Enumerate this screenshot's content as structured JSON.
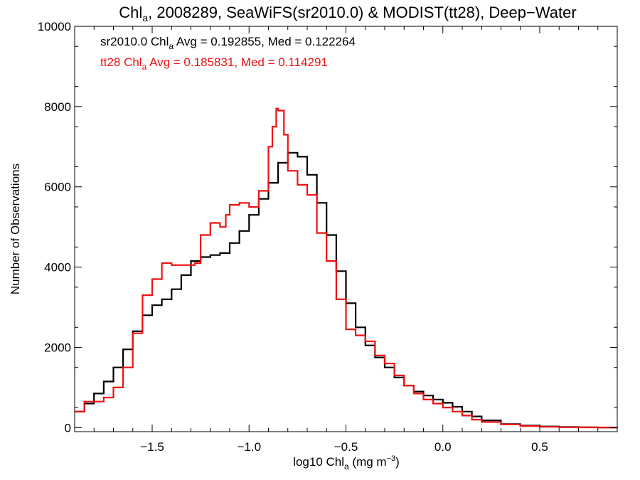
{
  "chart_data": {
    "type": "line",
    "title": {
      "pre": "Chl",
      "sub": "a",
      "post": ", 2008289, SeaWiFS(sr2010.0) & MODIST(tt28), Deep−Water"
    },
    "xlabel": {
      "pre": "log10 Chl",
      "sub": "a",
      "post": " (mg m",
      "sup": "−3",
      "end": ")"
    },
    "ylabel": "Number of Observations",
    "xlim": [
      -1.9,
      0.9
    ],
    "ylim": [
      -100,
      10000
    ],
    "xticks": [
      -1.5,
      -1.0,
      -0.5,
      0.0,
      0.5
    ],
    "xtick_labels": [
      "−1.5",
      "−1.0",
      "−0.5",
      "0.0",
      "0.5"
    ],
    "yticks": [
      0,
      2000,
      4000,
      6000,
      8000,
      10000
    ],
    "ytick_labels": [
      "0",
      "2000",
      "4000",
      "6000",
      "8000",
      "10000"
    ],
    "grid": false,
    "annotations": [
      {
        "pre": "sr2010.0 Chl",
        "sub": "a",
        "post": " Avg = 0.192855, Med = 0.122264",
        "color": "#000000"
      },
      {
        "pre": "tt28 Chl",
        "sub": "a",
        "post": " Avg = 0.185831, Med = 0.114291",
        "color": "#ee1111"
      }
    ],
    "series": [
      {
        "name": "sr2010.0",
        "color": "#000000",
        "x": [
          -1.9,
          -1.85,
          -1.8,
          -1.75,
          -1.7,
          -1.65,
          -1.6,
          -1.55,
          -1.5,
          -1.45,
          -1.4,
          -1.35,
          -1.3,
          -1.25,
          -1.2,
          -1.15,
          -1.1,
          -1.05,
          -1.0,
          -0.95,
          -0.9,
          -0.85,
          -0.8,
          -0.78,
          -0.75,
          -0.7,
          -0.65,
          -0.6,
          -0.55,
          -0.5,
          -0.45,
          -0.4,
          -0.35,
          -0.3,
          -0.25,
          -0.2,
          -0.15,
          -0.1,
          -0.05,
          0.0,
          0.05,
          0.1,
          0.15,
          0.2,
          0.3,
          0.4,
          0.5,
          0.6,
          0.7,
          0.8,
          0.9
        ],
        "y": [
          400,
          600,
          850,
          1150,
          1500,
          1950,
          2400,
          2800,
          3050,
          3200,
          3450,
          3800,
          4150,
          4250,
          4300,
          4350,
          4600,
          4900,
          5300,
          5700,
          6100,
          6600,
          6850,
          6850,
          6750,
          6300,
          5600,
          4800,
          3900,
          3100,
          2500,
          2050,
          1750,
          1500,
          1250,
          1050,
          900,
          800,
          700,
          620,
          520,
          400,
          280,
          180,
          90,
          50,
          30,
          15,
          8,
          4,
          2
        ]
      },
      {
        "name": "tt28",
        "color": "#ee1111",
        "x": [
          -1.9,
          -1.85,
          -1.8,
          -1.75,
          -1.7,
          -1.65,
          -1.6,
          -1.55,
          -1.5,
          -1.45,
          -1.42,
          -1.4,
          -1.35,
          -1.3,
          -1.28,
          -1.25,
          -1.2,
          -1.15,
          -1.12,
          -1.1,
          -1.05,
          -1.0,
          -0.95,
          -0.9,
          -0.88,
          -0.86,
          -0.85,
          -0.82,
          -0.8,
          -0.75,
          -0.7,
          -0.65,
          -0.6,
          -0.55,
          -0.5,
          -0.45,
          -0.4,
          -0.35,
          -0.3,
          -0.25,
          -0.2,
          -0.15,
          -0.1,
          -0.05,
          0.0,
          0.05,
          0.1,
          0.15,
          0.2,
          0.3,
          0.4,
          0.5,
          0.6,
          0.7,
          0.8,
          0.9
        ],
        "y": [
          400,
          650,
          650,
          750,
          1000,
          1500,
          2350,
          3300,
          3700,
          4100,
          4100,
          4050,
          4050,
          4050,
          4100,
          4800,
          5100,
          5000,
          5300,
          5550,
          5600,
          5500,
          5900,
          7000,
          7500,
          7950,
          7900,
          7300,
          6400,
          6050,
          5800,
          4850,
          4150,
          3200,
          2450,
          2300,
          2150,
          1800,
          1600,
          1300,
          1050,
          850,
          700,
          600,
          500,
          400,
          300,
          200,
          140,
          80,
          40,
          20,
          10,
          6,
          3,
          1
        ]
      }
    ]
  }
}
